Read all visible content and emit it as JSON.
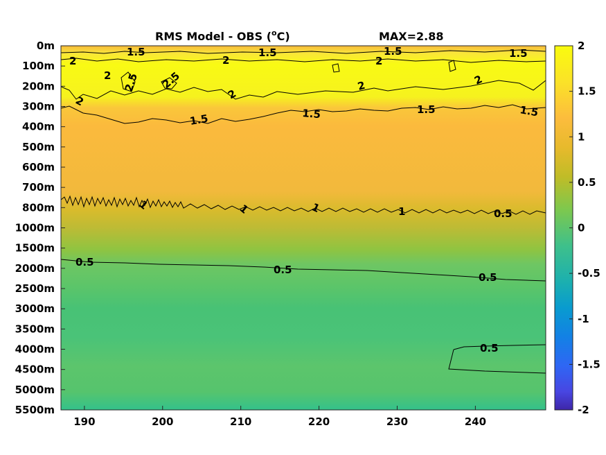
{
  "chart_data": {
    "type": "heatmap",
    "title": "RMS Model - OBS (°C)",
    "title_main": "RMS Model - OBS (",
    "title_sup": "o",
    "title_unit": "C)",
    "annotation": "MAX=2.88",
    "x_ticks": [
      190,
      200,
      210,
      220,
      230,
      240
    ],
    "xlim": [
      187,
      249
    ],
    "y_ticks": [
      "0m",
      "100m",
      "200m",
      "300m",
      "400m",
      "500m",
      "600m",
      "700m",
      "800m",
      "1000m",
      "1500m",
      "2000m",
      "2500m",
      "3000m",
      "3500m",
      "4000m",
      "4500m",
      "5000m",
      "5500m"
    ],
    "colorbar": {
      "range": [
        -2,
        2
      ],
      "ticks": [
        "2",
        "1.5",
        "1",
        "0.5",
        "0",
        "-0.5",
        "-1",
        "-1.5",
        "-2"
      ],
      "colormap": "parula"
    },
    "profile_rms_by_depth": [
      {
        "depth": "0m",
        "value": 1.5
      },
      {
        "depth": "100m",
        "value": 2.0
      },
      {
        "depth": "200m",
        "value": 2.0
      },
      {
        "depth": "300m",
        "value": 1.5
      },
      {
        "depth": "400m",
        "value": 1.35
      },
      {
        "depth": "500m",
        "value": 1.3
      },
      {
        "depth": "600m",
        "value": 1.3
      },
      {
        "depth": "700m",
        "value": 1.2
      },
      {
        "depth": "800m",
        "value": 1.0
      },
      {
        "depth": "1000m",
        "value": 0.85
      },
      {
        "depth": "1500m",
        "value": 0.65
      },
      {
        "depth": "2000m",
        "value": 0.5
      },
      {
        "depth": "2500m",
        "value": 0.4
      },
      {
        "depth": "3000m",
        "value": 0.4
      },
      {
        "depth": "3500m",
        "value": 0.45
      },
      {
        "depth": "4000m",
        "value": 0.5
      },
      {
        "depth": "4500m",
        "value": 0.5
      },
      {
        "depth": "5000m",
        "value": 0.45
      },
      {
        "depth": "5500m",
        "value": 0.35
      }
    ],
    "contour_labels": [
      "1.5",
      "1.5",
      "1.5",
      "1.5",
      "2",
      "2",
      "2",
      "2",
      "2.5",
      "2.5",
      "2",
      "2",
      "2",
      "2",
      "1.5",
      "1.5",
      "1.5",
      "1.5",
      "1",
      "1",
      "1",
      "1",
      "0.5",
      "0.5",
      "0.5",
      "0.5"
    ]
  }
}
